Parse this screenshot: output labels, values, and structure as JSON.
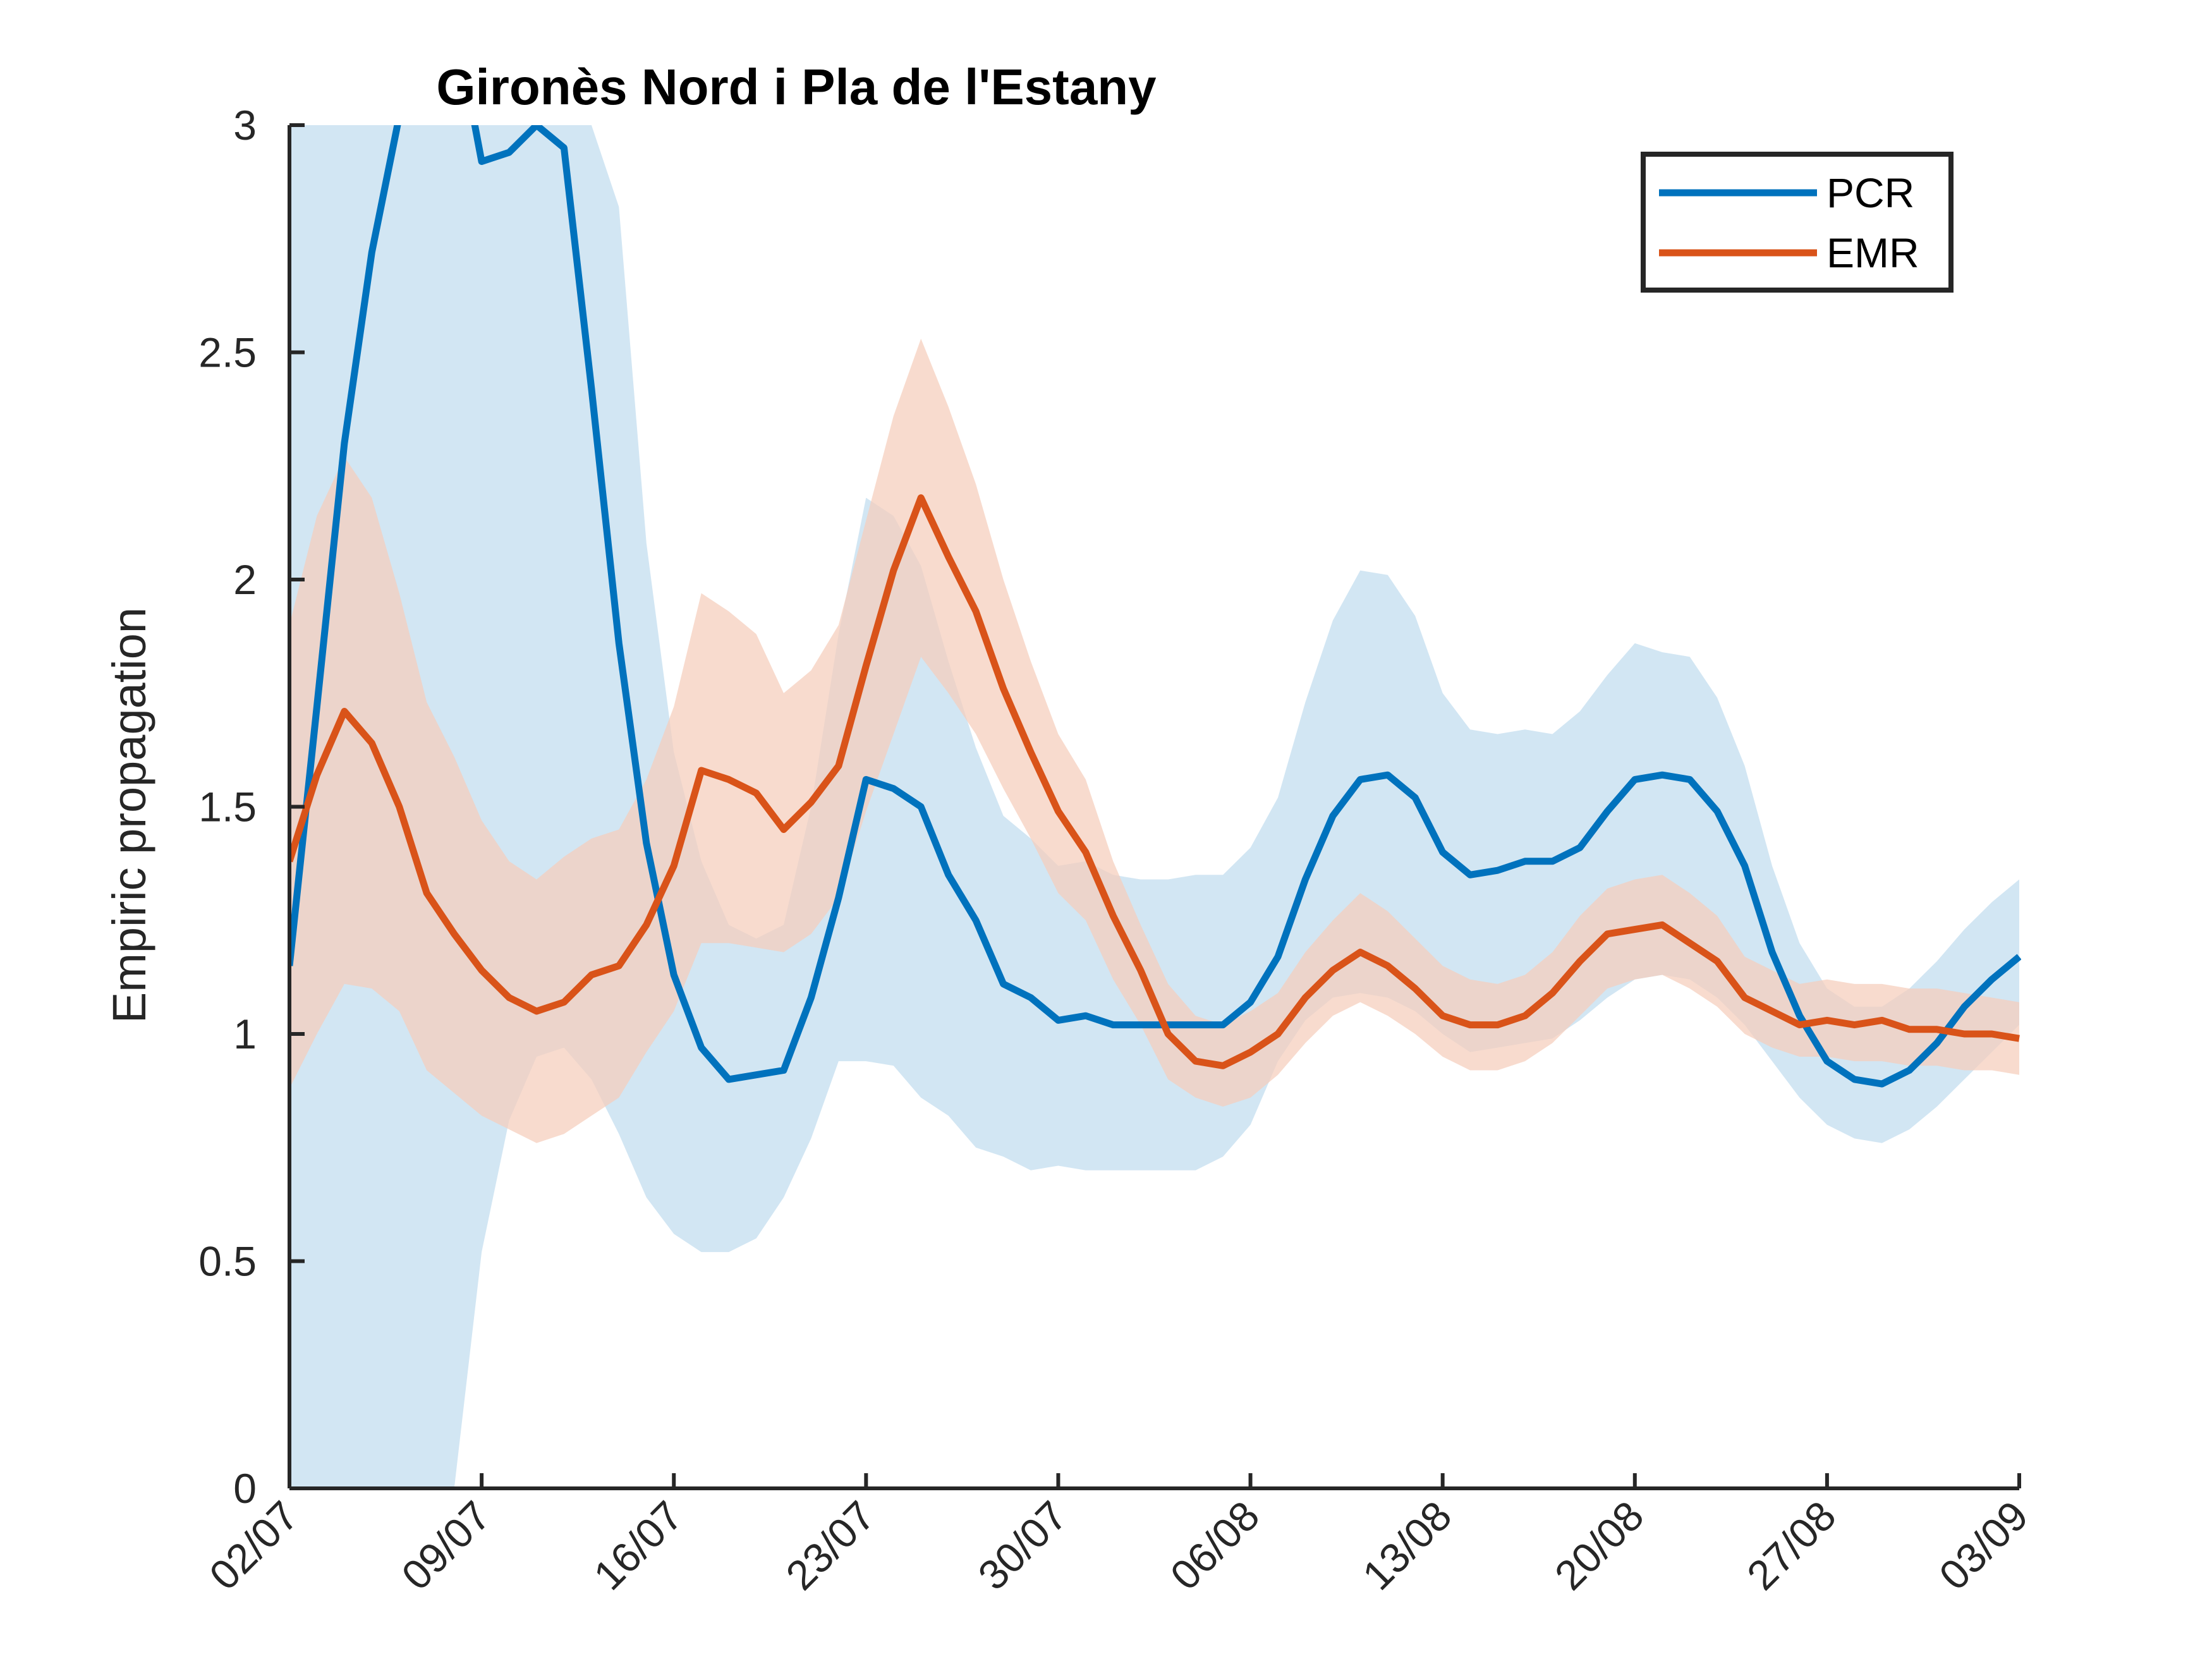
{
  "chart_data": {
    "type": "line",
    "title": "Gironès Nord i Pla de l'Estany",
    "xlabel": "",
    "ylabel": "Empiric propagation",
    "ylim": [
      0,
      3
    ],
    "y_ticks": [
      0,
      0.5,
      1,
      1.5,
      2,
      2.5,
      3
    ],
    "y_tick_labels": [
      "0",
      "0.5",
      "1",
      "1.5",
      "2",
      "2.5",
      "3"
    ],
    "x_tick_labels": [
      "02/07",
      "09/07",
      "16/07",
      "23/07",
      "30/07",
      "06/08",
      "13/08",
      "20/08",
      "27/08",
      "03/09"
    ],
    "x_tick_dates": [
      "2020-07-02",
      "2020-07-09",
      "2020-07-16",
      "2020-07-23",
      "2020-07-30",
      "2020-08-06",
      "2020-08-13",
      "2020-08-20",
      "2020-08-27",
      "2020-09-03"
    ],
    "x": [
      "2020-07-02",
      "2020-07-03",
      "2020-07-04",
      "2020-07-05",
      "2020-07-06",
      "2020-07-07",
      "2020-07-08",
      "2020-07-09",
      "2020-07-10",
      "2020-07-11",
      "2020-07-12",
      "2020-07-13",
      "2020-07-14",
      "2020-07-15",
      "2020-07-16",
      "2020-07-17",
      "2020-07-18",
      "2020-07-19",
      "2020-07-20",
      "2020-07-21",
      "2020-07-22",
      "2020-07-23",
      "2020-07-24",
      "2020-07-25",
      "2020-07-26",
      "2020-07-27",
      "2020-07-28",
      "2020-07-29",
      "2020-07-30",
      "2020-07-31",
      "2020-08-01",
      "2020-08-02",
      "2020-08-03",
      "2020-08-04",
      "2020-08-05",
      "2020-08-06",
      "2020-08-07",
      "2020-08-08",
      "2020-08-09",
      "2020-08-10",
      "2020-08-11",
      "2020-08-12",
      "2020-08-13",
      "2020-08-14",
      "2020-08-15",
      "2020-08-16",
      "2020-08-17",
      "2020-08-18",
      "2020-08-19",
      "2020-08-20",
      "2020-08-21",
      "2020-08-22",
      "2020-08-23",
      "2020-08-24",
      "2020-08-25",
      "2020-08-26",
      "2020-08-27",
      "2020-08-28",
      "2020-08-29",
      "2020-08-30",
      "2020-08-31",
      "2020-09-01",
      "2020-09-02",
      "2020-09-03"
    ],
    "series": [
      {
        "name": "PCR",
        "color": "#0072BD",
        "band_color": "#C0DCEE",
        "values": [
          1.15,
          1.72,
          2.3,
          2.72,
          3.02,
          3.2,
          3.24,
          2.92,
          2.94,
          3.0,
          2.95,
          2.42,
          1.86,
          1.42,
          1.13,
          0.97,
          0.9,
          0.91,
          0.92,
          1.08,
          1.3,
          1.56,
          1.54,
          1.5,
          1.35,
          1.25,
          1.11,
          1.08,
          1.03,
          1.04,
          1.02,
          1.02,
          1.02,
          1.02,
          1.02,
          1.07,
          1.17,
          1.34,
          1.48,
          1.56,
          1.57,
          1.52,
          1.4,
          1.35,
          1.36,
          1.38,
          1.38,
          1.41,
          1.49,
          1.56,
          1.57,
          1.56,
          1.49,
          1.37,
          1.18,
          1.04,
          0.94,
          0.9,
          0.89,
          0.92,
          0.98,
          1.06,
          1.12,
          1.17
        ],
        "lower": [
          0.0,
          0.0,
          0.0,
          0.0,
          0.0,
          0.0,
          0.0,
          0.52,
          0.81,
          0.95,
          0.97,
          0.9,
          0.78,
          0.64,
          0.56,
          0.52,
          0.52,
          0.55,
          0.64,
          0.77,
          0.94,
          0.94,
          0.93,
          0.86,
          0.82,
          0.75,
          0.73,
          0.7,
          0.71,
          0.7,
          0.7,
          0.7,
          0.7,
          0.7,
          0.73,
          0.8,
          0.94,
          1.03,
          1.08,
          1.09,
          1.08,
          1.05,
          1.0,
          0.96,
          0.97,
          0.98,
          0.99,
          1.03,
          1.08,
          1.12,
          1.13,
          1.12,
          1.08,
          1.02,
          0.94,
          0.86,
          0.8,
          0.77,
          0.76,
          0.79,
          0.84,
          0.9,
          0.96,
          1.02
        ],
        "upper": [
          3.0,
          3.0,
          3.0,
          3.0,
          3.0,
          3.0,
          3.0,
          3.0,
          3.0,
          3.0,
          3.0,
          3.0,
          2.82,
          2.08,
          1.62,
          1.38,
          1.24,
          1.21,
          1.24,
          1.5,
          1.88,
          2.18,
          2.14,
          2.03,
          1.82,
          1.63,
          1.48,
          1.43,
          1.37,
          1.38,
          1.35,
          1.34,
          1.34,
          1.35,
          1.35,
          1.41,
          1.52,
          1.73,
          1.91,
          2.02,
          2.01,
          1.92,
          1.75,
          1.67,
          1.66,
          1.67,
          1.66,
          1.71,
          1.79,
          1.86,
          1.84,
          1.83,
          1.74,
          1.59,
          1.37,
          1.2,
          1.1,
          1.06,
          1.06,
          1.1,
          1.16,
          1.23,
          1.29,
          1.34
        ]
      },
      {
        "name": "EMR",
        "color": "#D95319",
        "band_color": "#F5CDBB",
        "values": [
          1.38,
          1.57,
          1.71,
          1.64,
          1.5,
          1.31,
          1.22,
          1.14,
          1.08,
          1.05,
          1.07,
          1.13,
          1.15,
          1.24,
          1.37,
          1.58,
          1.56,
          1.53,
          1.45,
          1.51,
          1.59,
          1.81,
          2.02,
          2.18,
          2.05,
          1.93,
          1.76,
          1.62,
          1.49,
          1.4,
          1.26,
          1.14,
          1.0,
          0.94,
          0.93,
          0.96,
          1.0,
          1.08,
          1.14,
          1.18,
          1.15,
          1.1,
          1.04,
          1.02,
          1.02,
          1.04,
          1.09,
          1.16,
          1.22,
          1.23,
          1.24,
          1.2,
          1.16,
          1.08,
          1.05,
          1.02,
          1.03,
          1.02,
          1.03,
          1.01,
          1.01,
          1.0,
          1.0,
          0.99
        ],
        "lower": [
          0.88,
          1.0,
          1.11,
          1.1,
          1.05,
          0.92,
          0.87,
          0.82,
          0.79,
          0.76,
          0.78,
          0.82,
          0.86,
          0.96,
          1.05,
          1.2,
          1.2,
          1.19,
          1.18,
          1.22,
          1.3,
          1.49,
          1.66,
          1.83,
          1.75,
          1.66,
          1.54,
          1.43,
          1.31,
          1.25,
          1.12,
          1.02,
          0.9,
          0.86,
          0.84,
          0.86,
          0.91,
          0.98,
          1.04,
          1.07,
          1.04,
          1.0,
          0.95,
          0.92,
          0.92,
          0.94,
          0.98,
          1.04,
          1.1,
          1.12,
          1.13,
          1.1,
          1.06,
          1.0,
          0.97,
          0.95,
          0.95,
          0.94,
          0.94,
          0.93,
          0.93,
          0.92,
          0.92,
          0.91
        ],
        "upper": [
          1.9,
          2.14,
          2.27,
          2.18,
          1.97,
          1.73,
          1.61,
          1.47,
          1.38,
          1.34,
          1.39,
          1.43,
          1.45,
          1.56,
          1.72,
          1.97,
          1.93,
          1.88,
          1.75,
          1.8,
          1.9,
          2.13,
          2.36,
          2.53,
          2.38,
          2.21,
          2.0,
          1.82,
          1.66,
          1.56,
          1.38,
          1.24,
          1.11,
          1.04,
          1.02,
          1.05,
          1.09,
          1.18,
          1.25,
          1.31,
          1.27,
          1.21,
          1.15,
          1.12,
          1.11,
          1.13,
          1.18,
          1.26,
          1.32,
          1.34,
          1.35,
          1.31,
          1.26,
          1.17,
          1.14,
          1.11,
          1.12,
          1.11,
          1.11,
          1.1,
          1.1,
          1.09,
          1.08,
          1.07
        ]
      }
    ],
    "legend": {
      "position": "top-right",
      "entries": [
        "PCR",
        "EMR"
      ]
    }
  }
}
